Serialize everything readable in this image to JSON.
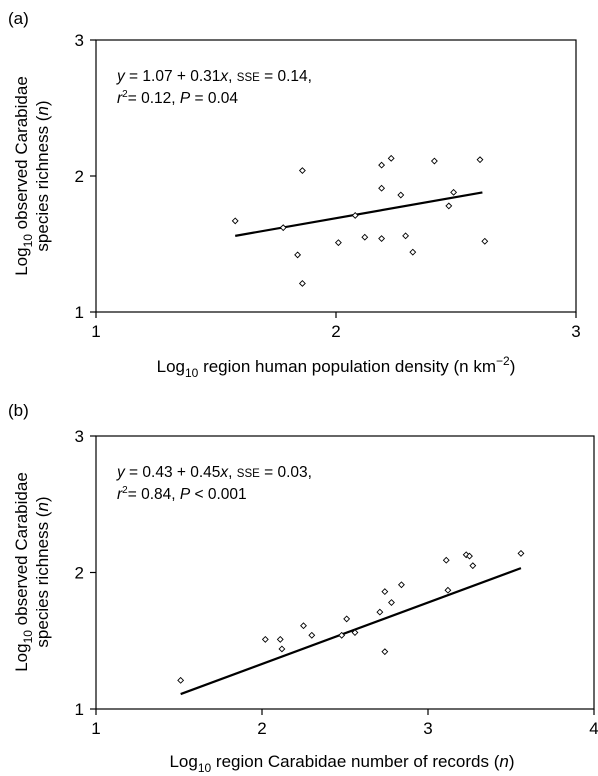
{
  "chart_data": [
    {
      "type": "scatter",
      "panel_label": "(a)",
      "xlabel": "Log₁₀ region human population density (n km⁻²)",
      "ylabel": "Log₁₀ observed Carabidae species richness (n)",
      "xlim": [
        1,
        3
      ],
      "ylim": [
        1,
        3
      ],
      "xticks": [
        "1",
        "2",
        "3"
      ],
      "yticks": [
        "1",
        "2",
        "3"
      ],
      "annotation_line1": "y = 1.07 + 0.31x, SSE = 0.14,",
      "annotation_line2": "r²= 0.12, P = 0.04",
      "regression": {
        "intercept": 1.07,
        "slope": 0.31,
        "x_range": [
          1.58,
          2.61
        ]
      },
      "points": [
        [
          1.58,
          1.67
        ],
        [
          1.78,
          1.62
        ],
        [
          1.84,
          1.42
        ],
        [
          1.86,
          2.04
        ],
        [
          1.86,
          1.21
        ],
        [
          2.01,
          1.51
        ],
        [
          2.08,
          1.71
        ],
        [
          2.12,
          1.55
        ],
        [
          2.19,
          2.08
        ],
        [
          2.19,
          1.91
        ],
        [
          2.19,
          1.54
        ],
        [
          2.23,
          2.13
        ],
        [
          2.27,
          1.86
        ],
        [
          2.29,
          1.56
        ],
        [
          2.32,
          1.44
        ],
        [
          2.41,
          2.11
        ],
        [
          2.47,
          1.78
        ],
        [
          2.49,
          1.88
        ],
        [
          2.6,
          2.12
        ],
        [
          2.62,
          1.52
        ]
      ]
    },
    {
      "type": "scatter",
      "panel_label": "(b)",
      "xlabel": "Log₁₀ region Carabidae number of records (n)",
      "ylabel": "Log₁₀ observed Carabidae species richness (n)",
      "xlim": [
        1,
        4
      ],
      "ylim": [
        1,
        3
      ],
      "xticks": [
        "1",
        "2",
        "3",
        "4"
      ],
      "yticks": [
        "1",
        "2",
        "3"
      ],
      "annotation_line1": "y = 0.43 + 0.45x, SSE = 0.03,",
      "annotation_line2": "r²= 0.84, P < 0.001",
      "regression": {
        "intercept": 0.43,
        "slope": 0.45,
        "x_range": [
          1.51,
          3.56
        ]
      },
      "points": [
        [
          1.51,
          1.21
        ],
        [
          2.02,
          1.51
        ],
        [
          2.11,
          1.51
        ],
        [
          2.12,
          1.44
        ],
        [
          2.25,
          1.61
        ],
        [
          2.3,
          1.54
        ],
        [
          2.48,
          1.54
        ],
        [
          2.51,
          1.66
        ],
        [
          2.56,
          1.56
        ],
        [
          2.71,
          1.71
        ],
        [
          2.74,
          1.86
        ],
        [
          2.74,
          1.42
        ],
        [
          2.78,
          1.78
        ],
        [
          2.84,
          1.91
        ],
        [
          3.11,
          2.09
        ],
        [
          3.12,
          1.87
        ],
        [
          3.23,
          2.13
        ],
        [
          3.25,
          2.12
        ],
        [
          3.27,
          2.05
        ],
        [
          3.56,
          2.14
        ]
      ]
    }
  ]
}
